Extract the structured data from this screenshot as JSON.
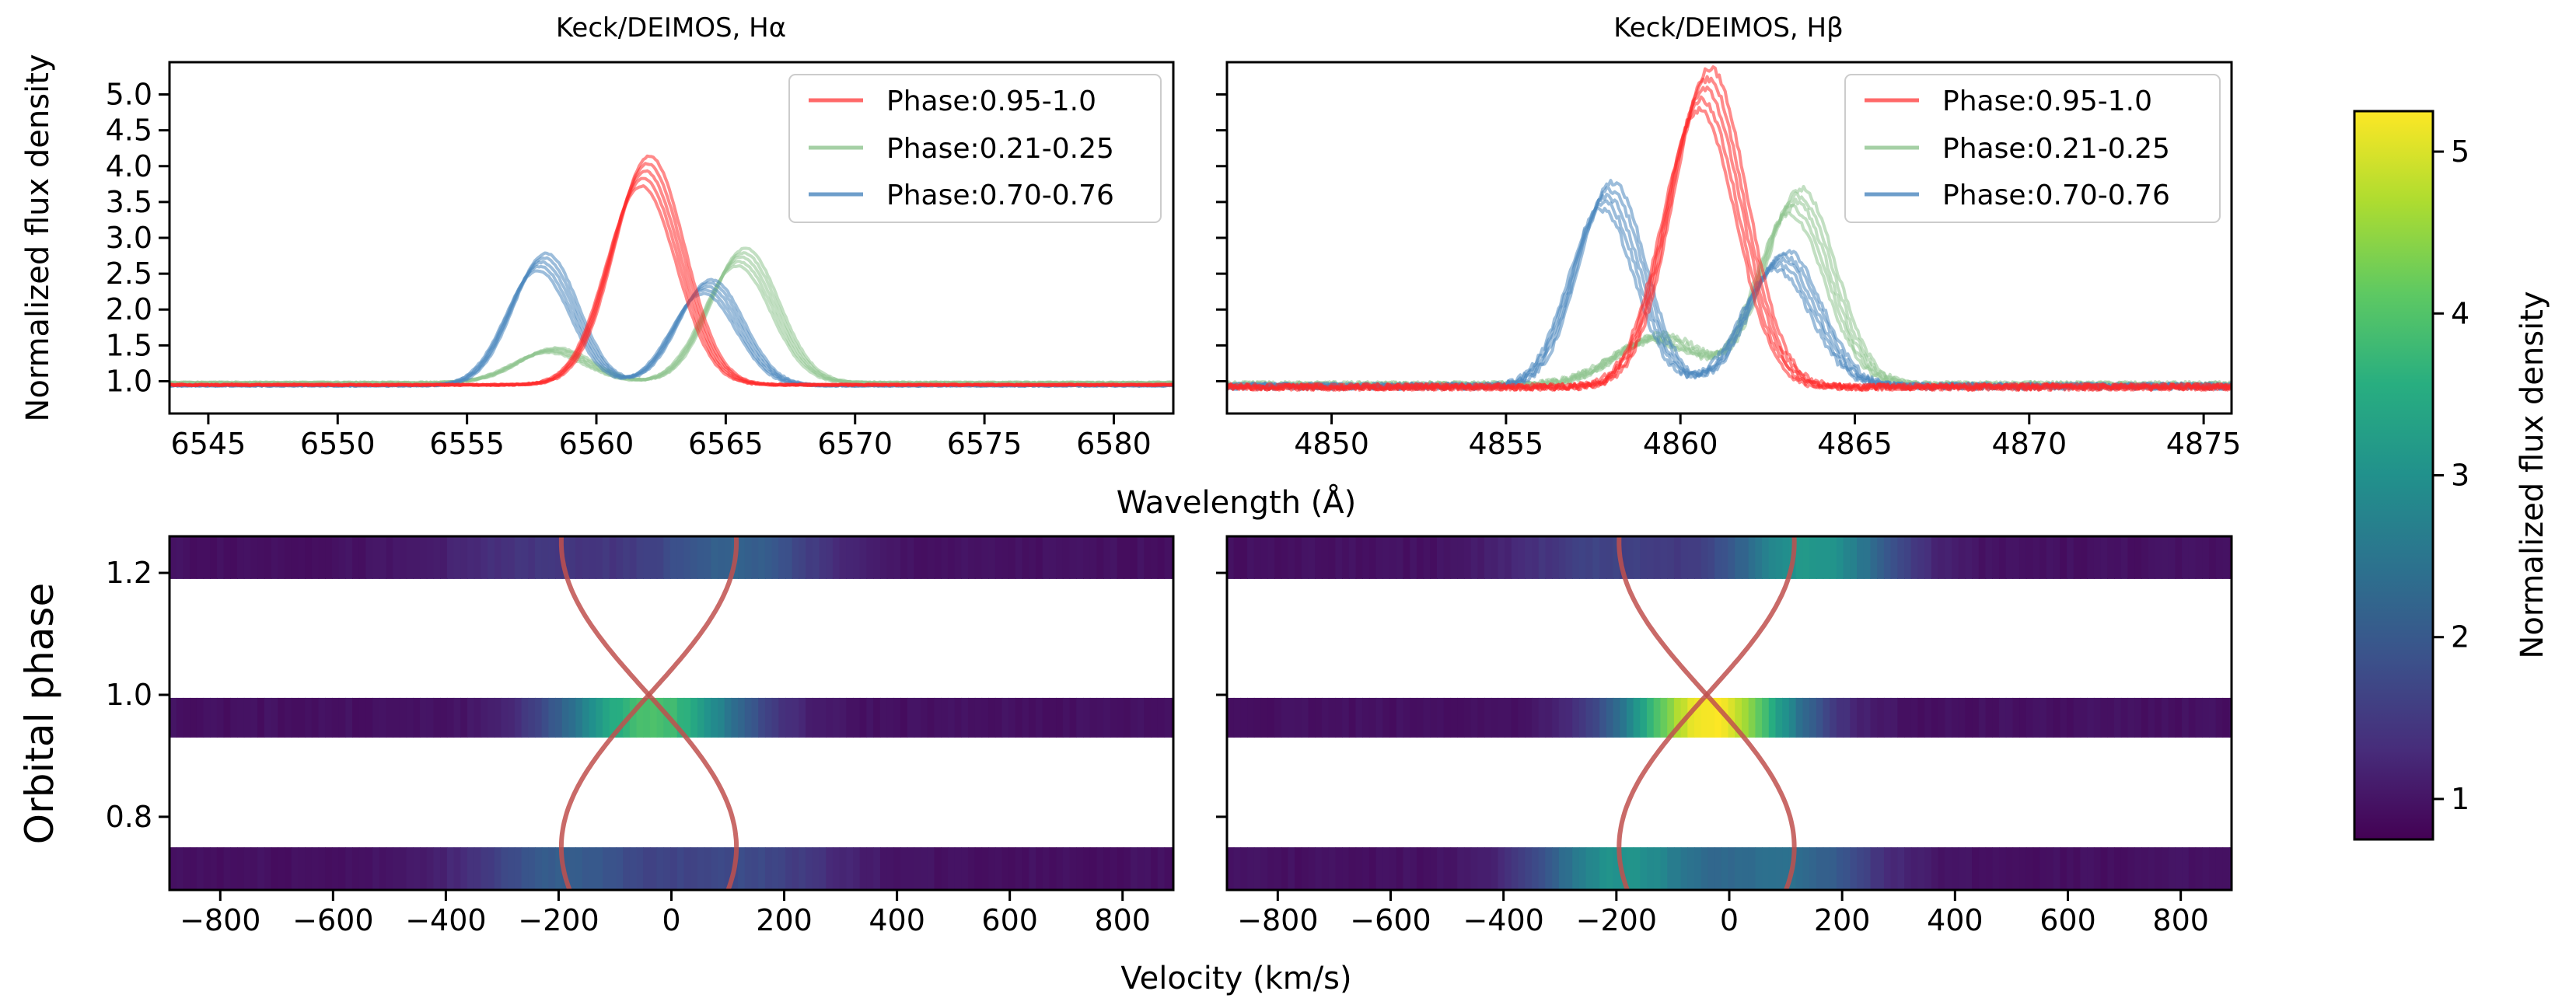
{
  "colors": {
    "red": "#ff2a2a",
    "green": "#8fc48f",
    "blue": "#4a86be",
    "track": "#c0504d"
  },
  "chart_data": [
    {
      "id": "top-left",
      "type": "line",
      "title": "Keck/DEIMOS, Hα",
      "ylabel": "Normalized flux density",
      "xlim": [
        6543.5,
        6582.3
      ],
      "ylim": [
        0.55,
        5.45
      ],
      "xticks": [
        6545,
        6550,
        6555,
        6560,
        6565,
        6570,
        6575,
        6580
      ],
      "yticks": [
        1.0,
        1.5,
        2.0,
        2.5,
        3.0,
        3.5,
        4.0,
        4.5,
        5.0
      ],
      "legend": [
        "Phase:0.95-1.0",
        "Phase:0.21-0.25",
        "Phase:0.70-0.76"
      ],
      "series": [
        {
          "name": "Phase:0.95-1.0",
          "color": "red",
          "base": 0.95,
          "peaks": [
            [
              6561.9,
              2.98,
              1.35
            ]
          ]
        },
        {
          "name": "Phase:0.21-0.25",
          "color": "green",
          "base": 0.98,
          "peaks": [
            [
              6558.3,
              0.45,
              1.4
            ],
            [
              6565.6,
              1.75,
              1.3
            ]
          ]
        },
        {
          "name": "Phase:0.70-0.76",
          "color": "blue",
          "base": 0.94,
          "peaks": [
            [
              6557.9,
              1.72,
              1.25
            ],
            [
              6564.3,
              1.38,
              1.25
            ]
          ]
        }
      ]
    },
    {
      "id": "top-right",
      "type": "line",
      "title": "Keck/DEIMOS, Hβ",
      "ylabel": "",
      "xlim": [
        4847.0,
        4875.8
      ],
      "ylim": [
        0.55,
        5.45
      ],
      "xticks": [
        4850,
        4855,
        4860,
        4865,
        4870,
        4875
      ],
      "yticks": [
        1.0,
        1.5,
        2.0,
        2.5,
        3.0,
        3.5,
        4.0,
        4.5,
        5.0
      ],
      "legend": [
        "Phase:0.95-1.0",
        "Phase:0.21-0.25",
        "Phase:0.70-0.76"
      ],
      "series": [
        {
          "name": "Phase:0.95-1.0",
          "color": "red",
          "base": 0.92,
          "peaks": [
            [
              4860.7,
              4.15,
              1.05
            ]
          ]
        },
        {
          "name": "Phase:0.21-0.25",
          "color": "green",
          "base": 0.95,
          "peaks": [
            [
              4859.3,
              0.65,
              1.2
            ],
            [
              4863.3,
              2.55,
              1.0
            ]
          ]
        },
        {
          "name": "Phase:0.70-0.76",
          "color": "blue",
          "base": 0.93,
          "peaks": [
            [
              4857.9,
              2.65,
              0.95
            ],
            [
              4862.9,
              1.75,
              1.0
            ]
          ]
        }
      ]
    },
    {
      "id": "bottom-left",
      "type": "heatmap",
      "ylabel": "Orbital phase",
      "xlim": [
        -890,
        890
      ],
      "ylim": [
        0.68,
        1.26
      ],
      "xticks": [
        -800,
        -600,
        -400,
        -200,
        0,
        200,
        400,
        600,
        800
      ],
      "yticks": [
        0.8,
        1.0,
        1.2
      ],
      "strips": [
        {
          "y0": 1.19,
          "y1": 1.26,
          "peaks": [
            [
              -230,
              0.5,
              130
            ],
            [
              110,
              1.2,
              115
            ]
          ]
        },
        {
          "y0": 0.93,
          "y1": 0.995,
          "peaks": [
            [
              -40,
              3.0,
              120
            ]
          ]
        },
        {
          "y0": 0.68,
          "y1": 0.75,
          "peaks": [
            [
              -200,
              1.1,
              120
            ],
            [
              130,
              0.8,
              120
            ]
          ]
        }
      ],
      "rv_amplitude": 135,
      "rv_offset": -40
    },
    {
      "id": "bottom-right",
      "type": "heatmap",
      "ylabel": "",
      "xlim": [
        -890,
        890
      ],
      "ylim": [
        0.68,
        1.26
      ],
      "xticks": [
        -800,
        -600,
        -400,
        -200,
        0,
        200,
        400,
        600,
        800
      ],
      "yticks": [
        0.8,
        1.0,
        1.2
      ],
      "strips": [
        {
          "y0": 1.19,
          "y1": 1.26,
          "peaks": [
            [
              -230,
              0.7,
              120
            ],
            [
              140,
              2.2,
              110
            ]
          ]
        },
        {
          "y0": 0.93,
          "y1": 0.995,
          "peaks": [
            [
              -40,
              4.3,
              110
            ]
          ]
        },
        {
          "y0": 0.68,
          "y1": 0.75,
          "peaks": [
            [
              -200,
              2.1,
              110
            ],
            [
              100,
              1.4,
              110
            ]
          ]
        }
      ],
      "rv_amplitude": 135,
      "rv_offset": -40
    }
  ],
  "xlabel_top": "Wavelength (Å)",
  "xlabel_bottom": "Velocity (km/s)",
  "colorbar": {
    "label": "Normalized flux density",
    "range": [
      0.75,
      5.25
    ],
    "ticks": [
      1,
      2,
      3,
      4,
      5
    ]
  }
}
